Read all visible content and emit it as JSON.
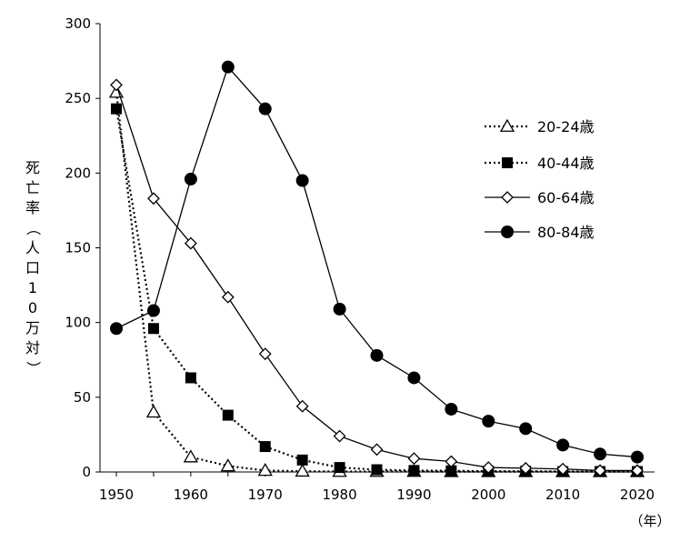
{
  "chart_data": {
    "type": "line",
    "title": "",
    "ylabel": "死亡率（人口10万対）",
    "xunit": "（年）",
    "ylim": [
      0,
      300
    ],
    "xlim": [
      1950,
      2020
    ],
    "yticks": [
      0,
      50,
      100,
      150,
      200,
      250,
      300
    ],
    "xticks": [
      1950,
      1960,
      1970,
      1980,
      1990,
      2000,
      2010,
      2020
    ],
    "x": [
      1950,
      1955,
      1960,
      1965,
      1970,
      1975,
      1980,
      1985,
      1990,
      1995,
      2000,
      2005,
      2010,
      2015,
      2020
    ],
    "grid": false,
    "legend_position": "right",
    "series": [
      {
        "name": "20-24歳",
        "marker": "triangle-open",
        "line": "dotted",
        "values": [
          254,
          40,
          10,
          4,
          1,
          0.5,
          0.3,
          0.3,
          0.3,
          0.2,
          0.2,
          0.2,
          0.2,
          0.2,
          0.2
        ]
      },
      {
        "name": "40-44歳",
        "marker": "square-filled",
        "line": "dotted",
        "values": [
          243,
          96,
          63,
          38,
          17,
          8,
          3,
          1.5,
          1,
          0.8,
          0.5,
          0.5,
          0.3,
          0.3,
          0.3
        ]
      },
      {
        "name": "60-64歳",
        "marker": "diamond-open",
        "line": "solid",
        "values": [
          259,
          183,
          153,
          117,
          79,
          44,
          24,
          15,
          9,
          7,
          3,
          2.5,
          2,
          1,
          1
        ]
      },
      {
        "name": "80-84歳",
        "marker": "circle-filled",
        "line": "solid",
        "values": [
          96,
          108,
          196,
          271,
          243,
          195,
          109,
          78,
          63,
          42,
          34,
          29,
          18,
          12,
          10
        ]
      }
    ]
  }
}
